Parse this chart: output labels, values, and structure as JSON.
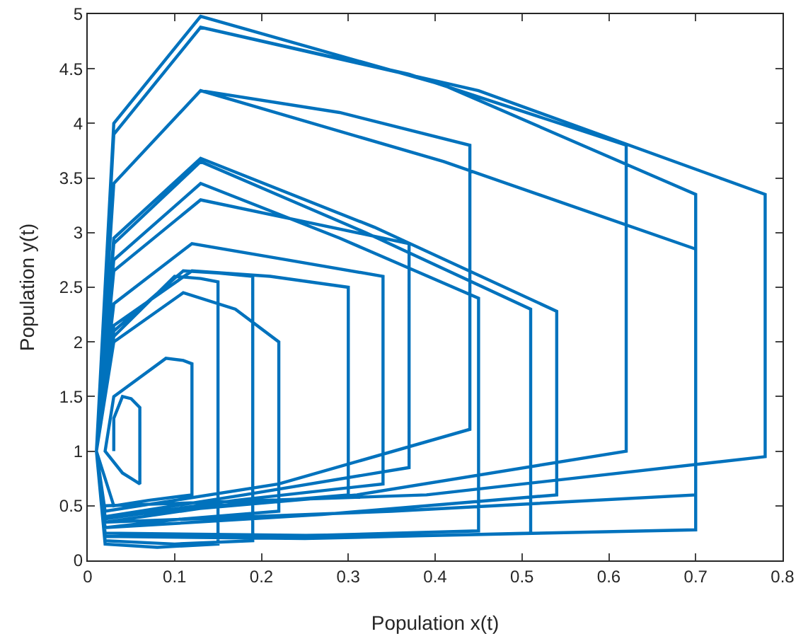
{
  "chart_data": {
    "type": "line",
    "xlabel": "Population x(t)",
    "ylabel": "Population y(t)",
    "xlim": [
      0,
      0.8
    ],
    "xticks": [
      0,
      0.1,
      0.2,
      0.3,
      0.4,
      0.5,
      0.6,
      0.7,
      0.8
    ],
    "ylim": [
      0,
      5
    ],
    "yticks": [
      0,
      0.5,
      1,
      1.5,
      2,
      2.5,
      3,
      3.5,
      4,
      4.5,
      5
    ],
    "grid": false,
    "legend": false,
    "marker": "none",
    "line_style": "solid",
    "series": [
      {
        "color": "#0072bd",
        "x": [
          0.02,
          0.39,
          0.78,
          0.78,
          0.45,
          0.13,
          0.03,
          0.01,
          0.02,
          0.35,
          0.7,
          0.7,
          0.41,
          0.13,
          0.03,
          0.01,
          0.02,
          0.31,
          0.62,
          0.62,
          0.37,
          0.13,
          0.03,
          0.01,
          0.02,
          0.35,
          0.7,
          0.7,
          0.41,
          0.13,
          0.03,
          0.01,
          0.02,
          0.27,
          0.54,
          0.54,
          0.33,
          0.13,
          0.03,
          0.01,
          0.02,
          0.25,
          0.51,
          0.51,
          0.32,
          0.13,
          0.03,
          0.01,
          0.02,
          0.22,
          0.45,
          0.45,
          0.29,
          0.13,
          0.03,
          0.01,
          0.02,
          0.22,
          0.44,
          0.44,
          0.29,
          0.13,
          0.03,
          0.01,
          0.02,
          0.18,
          0.37,
          0.37,
          0.25,
          0.13,
          0.03,
          0.01,
          0.02,
          0.17,
          0.34,
          0.34,
          0.23,
          0.12,
          0.03,
          0.01,
          0.02,
          0.15,
          0.3,
          0.3,
          0.21,
          0.12,
          0.03,
          0.01,
          0.02,
          0.11,
          0.22,
          0.22,
          0.17,
          0.11,
          0.03,
          0.01,
          0.02,
          0.1,
          0.19,
          0.19,
          0.15,
          0.11,
          0.03,
          0.01,
          0.02,
          0.08,
          0.15,
          0.15,
          0.13,
          0.1,
          0.03,
          0.01,
          0.03,
          0.07,
          0.12,
          0.12,
          0.11,
          0.09,
          0.03,
          0.02,
          0.04,
          0.05,
          0.06,
          0.06,
          0.05,
          0.04,
          0.03,
          0.03
        ],
        "values": [
          0.5,
          0.6,
          0.95,
          3.35,
          4.3,
          4.88,
          3.9,
          1.0,
          0.25,
          0.22,
          0.28,
          3.35,
          4.35,
          4.98,
          4.0,
          1.0,
          0.4,
          0.6,
          1.0,
          3.8,
          4.45,
          4.88,
          3.9,
          1.0,
          0.35,
          0.45,
          0.6,
          2.85,
          3.65,
          4.3,
          3.45,
          1.0,
          0.3,
          0.42,
          0.6,
          2.28,
          3.05,
          3.68,
          2.95,
          1.0,
          0.22,
          0.2,
          0.25,
          2.3,
          3.0,
          3.65,
          2.9,
          1.0,
          0.25,
          0.22,
          0.27,
          2.4,
          2.95,
          3.45,
          2.75,
          1.0,
          0.45,
          0.7,
          1.2,
          3.8,
          4.1,
          4.3,
          3.45,
          1.0,
          0.4,
          0.6,
          0.85,
          2.9,
          3.1,
          3.3,
          2.65,
          1.0,
          0.38,
          0.55,
          0.7,
          2.6,
          2.75,
          2.9,
          2.35,
          1.0,
          0.35,
          0.5,
          0.6,
          2.5,
          2.6,
          2.65,
          2.15,
          1.0,
          0.3,
          0.38,
          0.45,
          2.0,
          2.3,
          2.45,
          2.0,
          1.0,
          0.18,
          0.15,
          0.18,
          2.6,
          2.63,
          2.65,
          2.1,
          1.0,
          0.15,
          0.12,
          0.15,
          2.55,
          2.58,
          2.6,
          2.05,
          1.0,
          0.5,
          0.55,
          0.6,
          1.8,
          1.83,
          1.85,
          1.5,
          1.0,
          0.8,
          0.75,
          0.7,
          1.4,
          1.48,
          1.5,
          1.3,
          1.0
        ]
      }
    ]
  }
}
